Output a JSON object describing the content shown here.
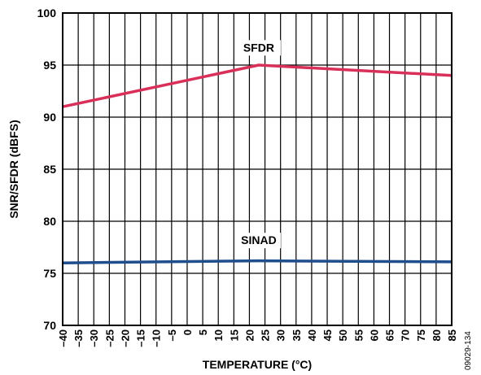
{
  "chart_data": {
    "type": "line",
    "xlabel": "TEMPERATURE (°C)",
    "ylabel": "SNR/SFDR (dBFS)",
    "xlim": [
      -40,
      85
    ],
    "ylim": [
      70,
      100
    ],
    "x_ticks": [
      -40,
      -35,
      -30,
      -25,
      -20,
      -15,
      -10,
      -5,
      0,
      5,
      10,
      15,
      20,
      25,
      30,
      35,
      40,
      45,
      50,
      55,
      60,
      65,
      70,
      75,
      80,
      85
    ],
    "x_tick_labels": [
      "–40",
      "–35",
      "–30",
      "–25",
      "–20",
      "–15",
      "–10",
      "–5",
      "0",
      "5",
      "10",
      "15",
      "20",
      "25",
      "30",
      "35",
      "40",
      "45",
      "50",
      "55",
      "60",
      "65",
      "70",
      "75",
      "80",
      "85"
    ],
    "y_ticks": [
      70,
      75,
      80,
      85,
      90,
      95,
      100
    ],
    "y_tick_labels": [
      "70",
      "75",
      "80",
      "85",
      "90",
      "95",
      "100"
    ],
    "grid": true,
    "series": [
      {
        "name": "SFDR",
        "color": "#d9305a",
        "x": [
          -40,
          23,
          85
        ],
        "y": [
          91,
          95,
          94
        ]
      },
      {
        "name": "SINAD",
        "color": "#1f4e8c",
        "x": [
          -40,
          23,
          85
        ],
        "y": [
          76,
          76.2,
          76.1
        ]
      }
    ],
    "annotations": [
      {
        "text": "SFDR",
        "x": 23,
        "y": 96.3
      },
      {
        "text": "SINAD",
        "x": 23,
        "y": 77.8
      }
    ],
    "figure_id": "09029-134"
  }
}
